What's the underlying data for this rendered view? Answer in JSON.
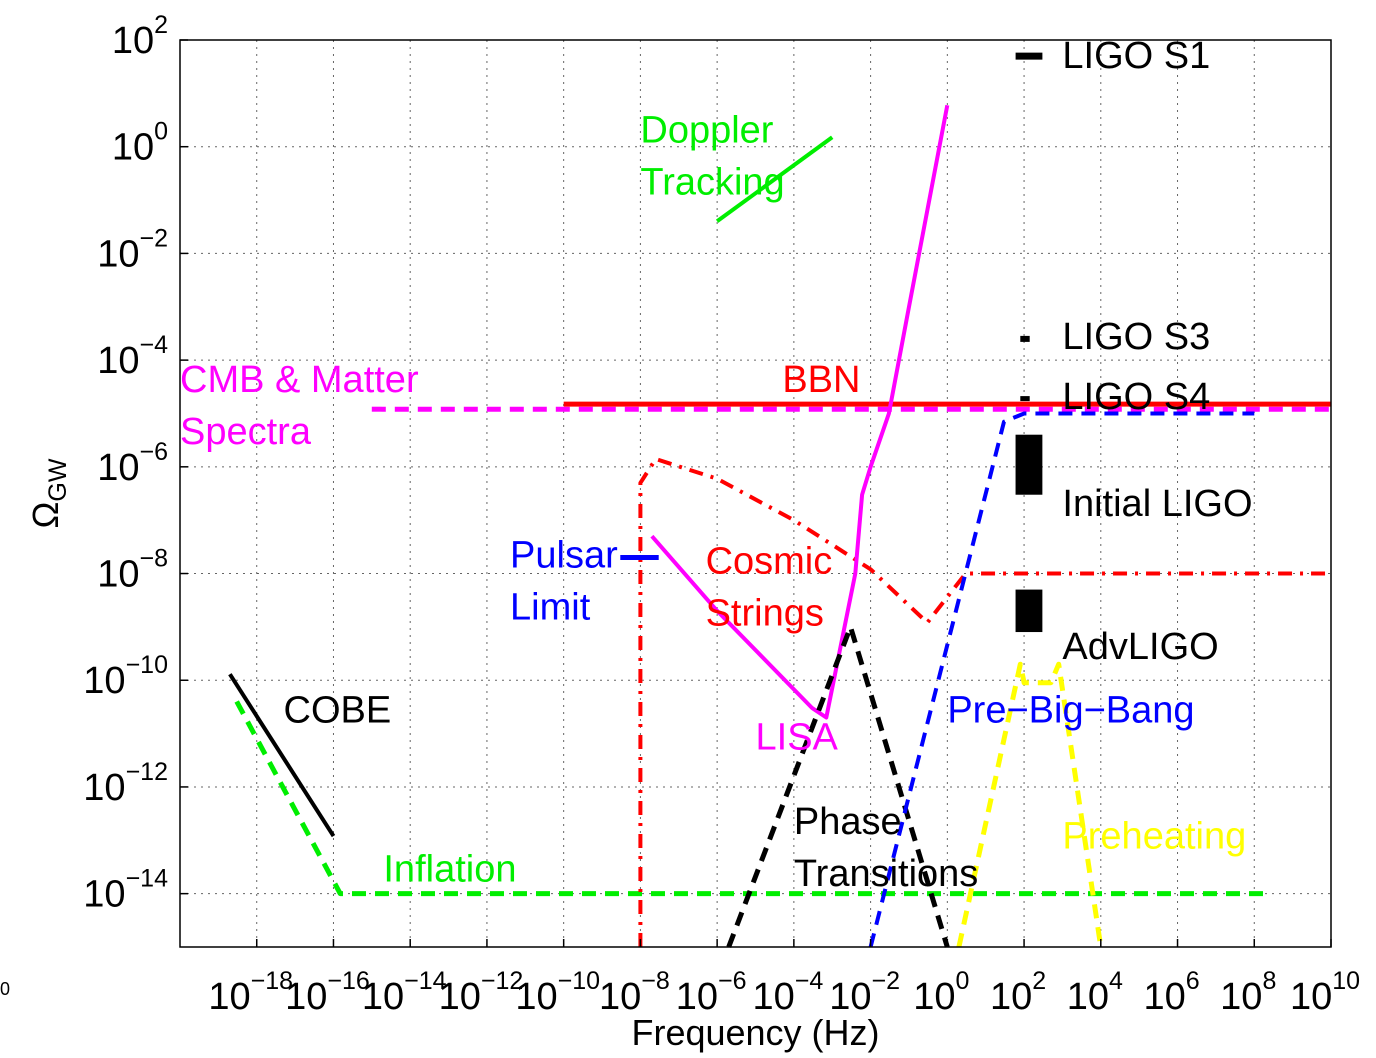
{
  "chart_data": {
    "type": "line",
    "title": "",
    "xlabel": "Frequency (Hz)",
    "ylabel": "Ω",
    "ylabel_sub": "GW",
    "x_scale": "log",
    "y_scale": "log",
    "xlim": [
      1e-20,
      10000000000.0
    ],
    "ylim": [
      1e-15,
      100.0
    ],
    "grid": true,
    "corner_label": "0",
    "x_ticks": [
      {
        "value": 1e-18,
        "base": "10",
        "exp": "−18"
      },
      {
        "value": 1e-16,
        "base": "10",
        "exp": "−16"
      },
      {
        "value": 1e-14,
        "base": "10",
        "exp": "−14"
      },
      {
        "value": 1e-12,
        "base": "10",
        "exp": "−12"
      },
      {
        "value": 1e-10,
        "base": "10",
        "exp": "−10"
      },
      {
        "value": 1e-08,
        "base": "10",
        "exp": "−8"
      },
      {
        "value": 1e-06,
        "base": "10",
        "exp": "−6"
      },
      {
        "value": 0.0001,
        "base": "10",
        "exp": "−4"
      },
      {
        "value": 0.01,
        "base": "10",
        "exp": "−2"
      },
      {
        "value": 1.0,
        "base": "10",
        "exp": "0"
      },
      {
        "value": 100.0,
        "base": "10",
        "exp": "2"
      },
      {
        "value": 10000.0,
        "base": "10",
        "exp": "4"
      },
      {
        "value": 1000000.0,
        "base": "10",
        "exp": "6"
      },
      {
        "value": 100000000.0,
        "base": "10",
        "exp": "8"
      },
      {
        "value": 10000000000.0,
        "base": "10",
        "exp": "10"
      }
    ],
    "y_ticks": [
      {
        "value": 100.0,
        "base": "10",
        "exp": "2"
      },
      {
        "value": 1.0,
        "base": "10",
        "exp": "0"
      },
      {
        "value": 0.01,
        "base": "10",
        "exp": "−2"
      },
      {
        "value": 0.0001,
        "base": "10",
        "exp": "−4"
      },
      {
        "value": 1e-06,
        "base": "10",
        "exp": "−6"
      },
      {
        "value": 1e-08,
        "base": "10",
        "exp": "−8"
      },
      {
        "value": 1e-10,
        "base": "10",
        "exp": "−10"
      },
      {
        "value": 1e-12,
        "base": "10",
        "exp": "−12"
      },
      {
        "value": 1e-14,
        "base": "10",
        "exp": "−14"
      }
    ],
    "series": [
      {
        "key": "inflation",
        "color": "#00ee00",
        "style": "dashed",
        "width": 5,
        "points": [
          [
            3e-19,
            4e-11
          ],
          [
            1.5e-16,
            1e-14
          ],
          [
            200000000.0,
            1e-14
          ]
        ]
      },
      {
        "key": "cobe",
        "color": "#000000",
        "style": "solid",
        "width": 4,
        "points": [
          [
            2e-19,
            1.3e-10
          ],
          [
            1e-16,
            1.2e-13
          ]
        ]
      },
      {
        "key": "cmb",
        "color": "#ff00ff",
        "style": "dashed",
        "width": 5,
        "points": [
          [
            1e-15,
            1.2e-05
          ],
          [
            10000000000.0,
            1.2e-05
          ]
        ]
      },
      {
        "key": "bbn",
        "color": "#ff0000",
        "style": "solid",
        "width": 5,
        "points": [
          [
            1e-10,
            1.5e-05
          ],
          [
            10000000000.0,
            1.5e-05
          ]
        ]
      },
      {
        "key": "cosmic_strings",
        "color": "#ff0000",
        "style": "dashdot",
        "width": 4,
        "points": [
          [
            1e-08,
            1e-15
          ],
          [
            1e-08,
            5e-07
          ],
          [
            2.5e-08,
            1.4e-06
          ],
          [
            1e-06,
            6e-07
          ],
          [
            0.0001,
            1e-07
          ],
          [
            0.01,
            1.2e-08
          ],
          [
            0.3,
            1.2e-09
          ],
          [
            3,
            1e-08
          ],
          [
            10000000000.0,
            1e-08
          ]
        ]
      },
      {
        "key": "lisa",
        "color": "#ff00ff",
        "style": "solid",
        "width": 4,
        "points": [
          [
            2e-08,
            5e-08
          ],
          [
            1e-06,
            2e-09
          ],
          [
            0.0003,
            3e-11
          ],
          [
            0.0007,
            2e-11
          ],
          [
            0.004,
            1e-08
          ],
          [
            0.006,
            3e-07
          ],
          [
            0.01,
            1e-06
          ],
          [
            0.03,
            1e-05
          ],
          [
            0.1,
            0.001
          ],
          [
            1,
            6
          ]
        ]
      },
      {
        "key": "phase_transitions",
        "color": "#000000",
        "style": "dashed",
        "width": 5,
        "points": [
          [
            2e-06,
            1e-15
          ],
          [
            0.003,
            1e-09
          ],
          [
            1,
            1e-15
          ]
        ]
      },
      {
        "key": "pre_big_bang",
        "color": "#0000ff",
        "style": "dashed",
        "width": 4,
        "points": [
          [
            0.01,
            1e-15
          ],
          [
            30.0,
            7e-06
          ],
          [
            100.0,
            1e-05
          ],
          [
            100000000.0,
            1e-05
          ]
        ]
      },
      {
        "key": "preheating",
        "color": "#ffff00",
        "style": "dashed",
        "width": 5,
        "points": [
          [
            2,
            1e-15
          ],
          [
            80.0,
            2e-10
          ],
          [
            100.0,
            9e-11
          ],
          [
            500.0,
            9e-11
          ],
          [
            800.0,
            2e-10
          ],
          [
            10000.0,
            1e-15
          ]
        ]
      },
      {
        "key": "doppler",
        "color": "#00ee00",
        "style": "solid",
        "width": 4,
        "points": [
          [
            1e-06,
            0.04
          ],
          [
            0.001,
            1.5
          ]
        ]
      },
      {
        "key": "pulsar",
        "color": "#0000ff",
        "style": "solid",
        "width": 5,
        "points": [
          [
            3e-09,
            2e-08
          ],
          [
            3e-08,
            2e-08
          ]
        ]
      },
      {
        "key": "ligo_s1",
        "color": "#000000",
        "style": "solid",
        "width": 7,
        "points": [
          [
            60.0,
            50
          ],
          [
            300.0,
            50
          ]
        ]
      },
      {
        "key": "ligo_s3",
        "color": "#000000",
        "style": "solid",
        "width": 6,
        "points": [
          [
            80.0,
            0.00025
          ],
          [
            140.0,
            0.00025
          ]
        ]
      },
      {
        "key": "ligo_s4",
        "color": "#000000",
        "style": "solid",
        "width": 5,
        "points": [
          [
            80.0,
            1.9e-05
          ],
          [
            140.0,
            1.9e-05
          ]
        ]
      }
    ],
    "boxes": [
      {
        "key": "initial_ligo",
        "color": "#000000",
        "x": [
          60.0,
          300.0
        ],
        "y": [
          3e-07,
          4e-06
        ]
      },
      {
        "key": "advligo",
        "color": "#000000",
        "x": [
          60.0,
          300.0
        ],
        "y": [
          8e-10,
          5e-09
        ]
      }
    ],
    "annotations": [
      {
        "key": "doppler1",
        "lines": [
          "Doppler",
          "Tracking"
        ],
        "color": "#00ee00",
        "x": 1e-08,
        "y": 1.2
      },
      {
        "key": "cmb",
        "lines": [
          "CMB & Matter",
          "Spectra"
        ],
        "color": "#ff00ff",
        "x": 1e-20,
        "y": 2.5e-05
      },
      {
        "key": "bbn",
        "lines": [
          "BBN"
        ],
        "color": "#ff0000",
        "x": 5e-05,
        "y": 2.5e-05
      },
      {
        "key": "ligo_s1",
        "lines": [
          "LIGO S1"
        ],
        "color": "#000000",
        "x": 1000.0,
        "y": 30
      },
      {
        "key": "ligo_s3",
        "lines": [
          "LIGO S3"
        ],
        "color": "#000000",
        "x": 1000.0,
        "y": 0.00016
      },
      {
        "key": "ligo_s4",
        "lines": [
          "LIGO S4"
        ],
        "color": "#000000",
        "x": 1000.0,
        "y": 1.2e-05
      },
      {
        "key": "initial_ligo",
        "lines": [
          "Initial LIGO"
        ],
        "color": "#000000",
        "x": 1000.0,
        "y": 1.2e-07
      },
      {
        "key": "pulsar",
        "lines": [
          "Pulsar",
          "Limit"
        ],
        "color": "#0000ff",
        "x": 4e-12,
        "y": 1.3e-08
      },
      {
        "key": "cosmic",
        "lines": [
          "Cosmic",
          "Strings"
        ],
        "color": "#ff0000",
        "x": 5e-07,
        "y": 1e-08
      },
      {
        "key": "advligo",
        "lines": [
          "AdvLIGO"
        ],
        "color": "#000000",
        "x": 1000.0,
        "y": 2.5e-10
      },
      {
        "key": "cobe",
        "lines": [
          "COBE"
        ],
        "color": "#000000",
        "x": 5e-18,
        "y": 1.6e-11
      },
      {
        "key": "pre_big_bang",
        "lines": [
          "Pre−Big−Bang"
        ],
        "color": "#0000ff",
        "x": 1.0,
        "y": 1.6e-11
      },
      {
        "key": "lisa",
        "lines": [
          "LISA"
        ],
        "color": "#ff00ff",
        "x": 1e-05,
        "y": 5e-12
      },
      {
        "key": "phase",
        "lines": [
          "Phase",
          "Transitions"
        ],
        "color": "#000000",
        "x": 0.0001,
        "y": 1.3e-13
      },
      {
        "key": "preheating",
        "lines": [
          "Preheating"
        ],
        "color": "#ffff00",
        "x": 1000.0,
        "y": 7e-14
      },
      {
        "key": "inflation",
        "lines": [
          "Inflation"
        ],
        "color": "#00ee00",
        "x": 2e-15,
        "y": 1.7e-14
      }
    ]
  }
}
